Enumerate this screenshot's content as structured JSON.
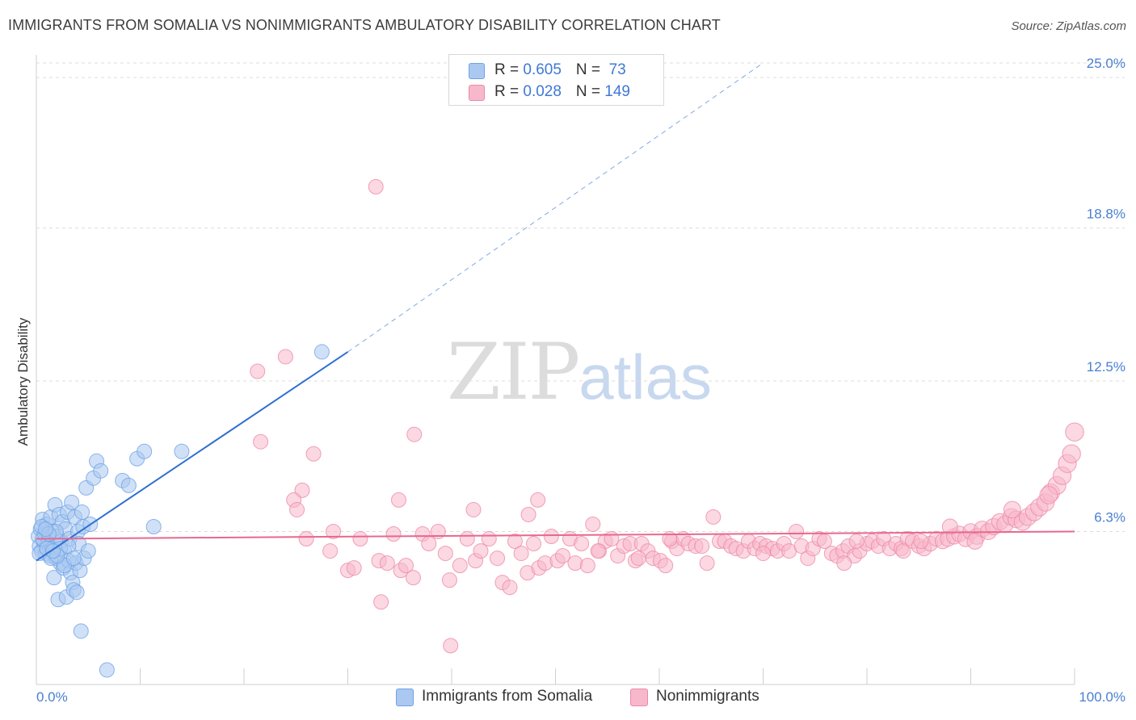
{
  "title": "IMMIGRANTS FROM SOMALIA VS NONIMMIGRANTS AMBULATORY DISABILITY CORRELATION CHART",
  "source": "Source: ZipAtlas.com",
  "watermark": {
    "zip": "ZIP",
    "atlas": "atlas"
  },
  "legend": {
    "rows": [
      {
        "r_label": "R = ",
        "r_value": "0.605",
        "n_label": "N = ",
        "n_value": " 73",
        "color": "#aac8f0"
      },
      {
        "r_label": "R = ",
        "r_value": "0.028",
        "n_label": "N = ",
        "n_value": "149",
        "color": "#f7b8cb"
      }
    ]
  },
  "bottom_legend": {
    "series1": "Immigrants from Somalia",
    "series2": "Nonimmigrants"
  },
  "chart_data": {
    "type": "scatter",
    "xlabel": "",
    "ylabel": "Ambulatory Disability",
    "xlim": [
      0,
      100
    ],
    "ylim": [
      0,
      25.6
    ],
    "x_tick_labels": [
      "0.0%",
      "100.0%"
    ],
    "y_ticks": [
      6.3,
      12.5,
      18.8,
      25.0
    ],
    "y_tick_labels": [
      "6.3%",
      "12.5%",
      "18.8%",
      "25.0%"
    ],
    "grid": "horizontal dashed",
    "legend_placement": "top-center",
    "series": [
      {
        "name": "Immigrants from Somalia",
        "color": "#6fa2e6",
        "fill": "#aac8f0",
        "trend": {
          "x": [
            0,
            30,
            70
          ],
          "y": [
            5.1,
            13.7,
            25.6
          ],
          "solid_until": 30
        },
        "points": [
          [
            0.2,
            6.1
          ],
          [
            0.3,
            5.7
          ],
          [
            0.4,
            6.4
          ],
          [
            0.5,
            5.5
          ],
          [
            0.6,
            6.8
          ],
          [
            0.7,
            5.9
          ],
          [
            0.8,
            6.2
          ],
          [
            0.9,
            5.4
          ],
          [
            1.0,
            6.6
          ],
          [
            1.1,
            5.8
          ],
          [
            1.2,
            6.0
          ],
          [
            1.3,
            5.3
          ],
          [
            1.4,
            6.9
          ],
          [
            1.5,
            5.6
          ],
          [
            1.6,
            6.3
          ],
          [
            1.7,
            4.4
          ],
          [
            1.8,
            7.4
          ],
          [
            1.9,
            5.2
          ],
          [
            2.0,
            6.1
          ],
          [
            2.1,
            3.5
          ],
          [
            2.2,
            7.0
          ],
          [
            2.3,
            5.0
          ],
          [
            2.4,
            5.9
          ],
          [
            2.5,
            6.7
          ],
          [
            2.6,
            4.8
          ],
          [
            2.7,
            5.5
          ],
          [
            2.8,
            6.4
          ],
          [
            2.9,
            3.6
          ],
          [
            3.0,
            7.1
          ],
          [
            3.1,
            5.1
          ],
          [
            3.2,
            6.0
          ],
          [
            3.3,
            4.6
          ],
          [
            3.4,
            7.5
          ],
          [
            3.5,
            4.2
          ],
          [
            3.6,
            3.9
          ],
          [
            3.7,
            6.9
          ],
          [
            3.8,
            5.0
          ],
          [
            3.9,
            3.8
          ],
          [
            4.0,
            6.3
          ],
          [
            4.1,
            5.8
          ],
          [
            4.2,
            4.7
          ],
          [
            4.3,
            2.2
          ],
          [
            4.4,
            7.1
          ],
          [
            4.5,
            6.5
          ],
          [
            4.6,
            5.2
          ],
          [
            4.8,
            8.1
          ],
          [
            5.0,
            5.5
          ],
          [
            5.2,
            6.6
          ],
          [
            5.5,
            8.5
          ],
          [
            5.8,
            9.2
          ],
          [
            6.2,
            8.8
          ],
          [
            6.8,
            0.6
          ],
          [
            8.3,
            8.4
          ],
          [
            8.9,
            8.2
          ],
          [
            9.7,
            9.3
          ],
          [
            10.4,
            9.6
          ],
          [
            11.3,
            6.5
          ],
          [
            14.0,
            9.6
          ],
          [
            27.5,
            13.7
          ],
          [
            0.3,
            5.4
          ],
          [
            0.6,
            6.0
          ],
          [
            1.0,
            5.6
          ],
          [
            1.4,
            5.2
          ],
          [
            1.9,
            6.3
          ],
          [
            2.3,
            5.6
          ],
          [
            2.7,
            4.9
          ],
          [
            3.1,
            5.7
          ],
          [
            0.5,
            6.5
          ],
          [
            1.2,
            6.2
          ],
          [
            2.0,
            5.3
          ],
          [
            3.6,
            5.2
          ],
          [
            0.9,
            6.4
          ],
          [
            1.6,
            5.5
          ]
        ]
      },
      {
        "name": "Nonimmigrants",
        "color": "#ee89a8",
        "fill": "#f7b8cb",
        "trend": {
          "x": [
            0,
            100
          ],
          "y": [
            6.0,
            6.3
          ]
        },
        "points": [
          [
            32.7,
            20.5
          ],
          [
            21.3,
            12.9
          ],
          [
            24.0,
            13.5
          ],
          [
            21.6,
            10.0
          ],
          [
            26.7,
            9.5
          ],
          [
            25.6,
            8.0
          ],
          [
            24.8,
            7.6
          ],
          [
            25.1,
            7.2
          ],
          [
            36.4,
            10.3
          ],
          [
            34.9,
            7.6
          ],
          [
            42.1,
            7.2
          ],
          [
            48.3,
            7.6
          ],
          [
            47.4,
            7.0
          ],
          [
            26.0,
            6.0
          ],
          [
            28.6,
            6.3
          ],
          [
            28.3,
            5.5
          ],
          [
            30.0,
            4.7
          ],
          [
            30.6,
            4.8
          ],
          [
            31.2,
            6.0
          ],
          [
            33.0,
            5.1
          ],
          [
            33.8,
            5.0
          ],
          [
            34.4,
            6.2
          ],
          [
            35.1,
            4.7
          ],
          [
            35.6,
            4.9
          ],
          [
            36.3,
            4.4
          ],
          [
            37.2,
            6.2
          ],
          [
            37.8,
            5.8
          ],
          [
            38.7,
            6.3
          ],
          [
            39.4,
            5.4
          ],
          [
            39.8,
            4.3
          ],
          [
            40.8,
            4.9
          ],
          [
            41.5,
            6.0
          ],
          [
            42.3,
            5.1
          ],
          [
            42.8,
            5.5
          ],
          [
            43.6,
            6.0
          ],
          [
            44.4,
            5.2
          ],
          [
            44.9,
            4.2
          ],
          [
            45.6,
            4.0
          ],
          [
            46.1,
            5.9
          ],
          [
            46.7,
            5.4
          ],
          [
            47.3,
            4.6
          ],
          [
            47.9,
            5.8
          ],
          [
            48.4,
            4.8
          ],
          [
            49.0,
            5.0
          ],
          [
            49.6,
            6.1
          ],
          [
            50.2,
            5.1
          ],
          [
            50.7,
            5.3
          ],
          [
            51.4,
            6.0
          ],
          [
            51.9,
            5.0
          ],
          [
            52.5,
            5.8
          ],
          [
            53.1,
            4.9
          ],
          [
            53.6,
            6.6
          ],
          [
            54.2,
            5.5
          ],
          [
            54.8,
            5.9
          ],
          [
            55.4,
            6.0
          ],
          [
            56.0,
            5.3
          ],
          [
            56.6,
            5.7
          ],
          [
            57.2,
            5.8
          ],
          [
            57.7,
            5.1
          ],
          [
            58.3,
            5.8
          ],
          [
            58.9,
            5.5
          ],
          [
            59.4,
            5.2
          ],
          [
            60.1,
            5.1
          ],
          [
            60.6,
            4.9
          ],
          [
            61.2,
            5.9
          ],
          [
            61.7,
            5.6
          ],
          [
            62.3,
            6.0
          ],
          [
            62.8,
            5.8
          ],
          [
            63.5,
            5.7
          ],
          [
            64.1,
            5.7
          ],
          [
            64.6,
            5.0
          ],
          [
            65.2,
            6.9
          ],
          [
            65.8,
            5.9
          ],
          [
            66.3,
            5.9
          ],
          [
            66.9,
            5.7
          ],
          [
            67.4,
            5.6
          ],
          [
            68.1,
            5.5
          ],
          [
            68.6,
            5.9
          ],
          [
            69.2,
            5.6
          ],
          [
            69.7,
            5.8
          ],
          [
            70.3,
            5.7
          ],
          [
            70.9,
            5.6
          ],
          [
            71.4,
            5.5
          ],
          [
            72.0,
            5.8
          ],
          [
            72.5,
            5.5
          ],
          [
            73.2,
            6.3
          ],
          [
            73.7,
            5.7
          ],
          [
            74.3,
            5.2
          ],
          [
            74.8,
            5.6
          ],
          [
            75.4,
            6.0
          ],
          [
            75.9,
            5.9
          ],
          [
            76.6,
            5.4
          ],
          [
            77.1,
            5.3
          ],
          [
            77.7,
            5.5
          ],
          [
            78.2,
            5.7
          ],
          [
            78.8,
            5.3
          ],
          [
            79.3,
            5.5
          ],
          [
            80.0,
            5.8
          ],
          [
            80.5,
            5.9
          ],
          [
            81.1,
            5.7
          ],
          [
            81.6,
            6.0
          ],
          [
            82.2,
            5.6
          ],
          [
            82.8,
            5.8
          ],
          [
            83.3,
            5.6
          ],
          [
            83.9,
            6.0
          ],
          [
            84.4,
            5.9
          ],
          [
            85.0,
            5.7
          ],
          [
            85.5,
            5.6
          ],
          [
            86.1,
            5.8
          ],
          [
            86.7,
            6.0
          ],
          [
            87.3,
            5.9
          ],
          [
            87.8,
            6.0
          ],
          [
            88.4,
            6.1
          ],
          [
            88.9,
            6.2
          ],
          [
            89.5,
            6.0
          ],
          [
            90.0,
            6.3
          ],
          [
            90.6,
            6.1
          ],
          [
            91.1,
            6.4
          ],
          [
            91.7,
            6.3
          ],
          [
            92.2,
            6.5
          ],
          [
            92.8,
            6.7
          ],
          [
            93.3,
            6.6
          ],
          [
            93.9,
            6.9
          ],
          [
            94.4,
            6.8
          ],
          [
            95.0,
            6.7
          ],
          [
            95.5,
            6.9
          ],
          [
            96.1,
            7.1
          ],
          [
            96.6,
            7.3
          ],
          [
            97.2,
            7.5
          ],
          [
            97.7,
            7.9
          ],
          [
            98.3,
            8.2
          ],
          [
            98.8,
            8.6
          ],
          [
            99.3,
            9.1
          ],
          [
            99.7,
            9.5
          ],
          [
            100.0,
            10.4
          ],
          [
            33.2,
            3.4
          ],
          [
            39.9,
            1.6
          ],
          [
            54.1,
            5.5
          ],
          [
            58.0,
            5.2
          ],
          [
            61.0,
            6.0
          ],
          [
            70.0,
            5.4
          ],
          [
            77.8,
            5.0
          ],
          [
            85.2,
            5.9
          ],
          [
            88.0,
            6.5
          ],
          [
            97.5,
            7.8
          ],
          [
            94.0,
            7.2
          ],
          [
            90.4,
            5.9
          ],
          [
            83.5,
            5.5
          ],
          [
            79.0,
            5.9
          ]
        ]
      }
    ]
  }
}
